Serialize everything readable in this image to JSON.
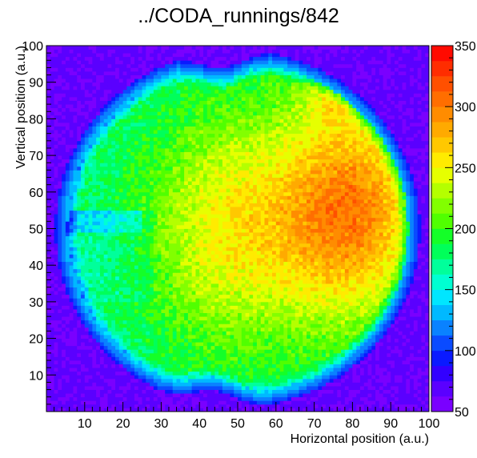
{
  "chart_data": {
    "type": "heatmap",
    "title": "../CODA_runnings/842",
    "xlabel": "Horizontal position (a.u.)",
    "ylabel": "Vertical position (a.u.)",
    "xlim": [
      0,
      100
    ],
    "ylim": [
      0,
      100
    ],
    "x_ticks": [
      "10",
      "20",
      "30",
      "40",
      "50",
      "60",
      "70",
      "80",
      "90",
      "100"
    ],
    "y_ticks": [
      "10",
      "20",
      "30",
      "40",
      "50",
      "60",
      "70",
      "80",
      "90",
      "100"
    ],
    "colorbar": {
      "range": [
        50,
        350
      ],
      "ticks": [
        "50",
        "100",
        "150",
        "200",
        "250",
        "300",
        "350"
      ],
      "colors": [
        "#7a00ff",
        "#5a00ff",
        "#3200ff",
        "#0a1aff",
        "#0a4bff",
        "#0a82ff",
        "#00b9ff",
        "#00e6ff",
        "#00ffd2",
        "#00ff9b",
        "#00ff5a",
        "#14ff28",
        "#50ff00",
        "#82ff00",
        "#b4ff00",
        "#e6ff00",
        "#ffeb00",
        "#ffc800",
        "#ffaa00",
        "#ff8c00",
        "#ff6e00",
        "#ff5000",
        "#ff2d00",
        "#ff0a00"
      ]
    },
    "grid": false,
    "bins": [
      100,
      100
    ],
    "regions": [
      {
        "name": "background",
        "approx_value": 60
      },
      {
        "name": "beam spot edge ring",
        "approx_value": 130
      },
      {
        "name": "left lobe",
        "approx_value": 190
      },
      {
        "name": "center",
        "approx_value": 255
      },
      {
        "name": "right lobe",
        "approx_value": 305
      },
      {
        "name": "right lobe peak",
        "approx_value": 340
      }
    ]
  }
}
